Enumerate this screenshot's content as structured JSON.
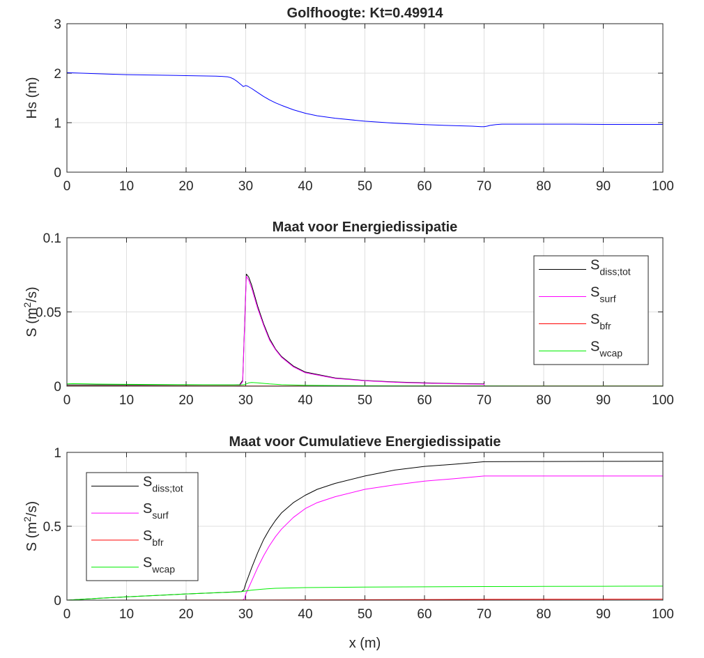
{
  "chart_data": [
    {
      "type": "line",
      "title": "Golfhoogte: Kt=0.49914",
      "xlabel": "",
      "ylabel": "Hs (m)",
      "ylabel_sup": "",
      "ylabel_after": "",
      "xlim": [
        0,
        100
      ],
      "ylim": [
        0,
        3
      ],
      "xticks": [
        "0",
        "10",
        "20",
        "30",
        "40",
        "50",
        "60",
        "70",
        "80",
        "90",
        "100"
      ],
      "yticks": [
        "0",
        "1",
        "2",
        "3"
      ],
      "grid": true,
      "legend": null,
      "series": [
        {
          "color": "#0000ff",
          "x": [
            0,
            5,
            10,
            15,
            20,
            25,
            26,
            27,
            27.5,
            28,
            28.5,
            29,
            29.3,
            29.6,
            30,
            30.3,
            31,
            32,
            33,
            34,
            35,
            36,
            38,
            40,
            42,
            45,
            50,
            55,
            60,
            65,
            68,
            69.5,
            70,
            70.5,
            71,
            72,
            73,
            75,
            80,
            85,
            90,
            95,
            100
          ],
          "y": [
            2.01,
            1.99,
            1.97,
            1.96,
            1.95,
            1.94,
            1.935,
            1.925,
            1.91,
            1.88,
            1.84,
            1.79,
            1.76,
            1.73,
            1.75,
            1.74,
            1.69,
            1.61,
            1.53,
            1.46,
            1.4,
            1.35,
            1.26,
            1.19,
            1.14,
            1.09,
            1.03,
            0.99,
            0.96,
            0.94,
            0.93,
            0.92,
            0.92,
            0.93,
            0.945,
            0.96,
            0.97,
            0.97,
            0.97,
            0.97,
            0.965,
            0.965,
            0.965
          ]
        }
      ]
    },
    {
      "type": "line",
      "title": "Maat voor Energiedissipatie",
      "xlabel": "",
      "ylabel": "S (m",
      "ylabel_sup": "2",
      "ylabel_after": "/s)",
      "xlim": [
        0,
        100
      ],
      "ylim": [
        0,
        0.1
      ],
      "xticks": [
        "0",
        "10",
        "20",
        "30",
        "40",
        "50",
        "60",
        "70",
        "80",
        "90",
        "100"
      ],
      "yticks": [
        "0",
        "0.05",
        "0.1"
      ],
      "grid": true,
      "legend": "top-right",
      "series": [
        {
          "name": "S",
          "sub": "diss;tot",
          "color": "#000000",
          "x": [
            0,
            10,
            20,
            28,
            29,
            29.5,
            29.8,
            30.1,
            30.5,
            31,
            32,
            33,
            34,
            35,
            36,
            38,
            40,
            45,
            50,
            55,
            60,
            65,
            70,
            70.01,
            100
          ],
          "y": [
            0.0008,
            0.0008,
            0.0008,
            0.0008,
            0.001,
            0.004,
            0.04,
            0.0755,
            0.0735,
            0.068,
            0.054,
            0.042,
            0.032,
            0.025,
            0.02,
            0.0135,
            0.0095,
            0.0055,
            0.0038,
            0.0028,
            0.0022,
            0.0018,
            0.0015,
            0,
            0
          ]
        },
        {
          "name": "S",
          "sub": "surf",
          "color": "#ff00ff",
          "x": [
            0,
            28,
            29,
            29.5,
            29.8,
            30.1,
            30.5,
            31,
            32,
            33,
            34,
            35,
            36,
            38,
            40,
            45,
            50,
            55,
            60,
            65,
            70,
            70.01,
            100
          ],
          "y": [
            0,
            0,
            0.0003,
            0.003,
            0.038,
            0.074,
            0.0715,
            0.066,
            0.0525,
            0.041,
            0.031,
            0.0245,
            0.0195,
            0.013,
            0.009,
            0.0052,
            0.0036,
            0.0026,
            0.002,
            0.0016,
            0.0013,
            0,
            0
          ]
        },
        {
          "name": "S",
          "sub": "bfr",
          "color": "#ff0000",
          "x": [
            0,
            30,
            50,
            70,
            100
          ],
          "y": [
            0.0001,
            0.0001,
            0.0001,
            0.0001,
            0.0001
          ]
        },
        {
          "name": "S",
          "sub": "wcap",
          "color": "#00ee00",
          "x": [
            0,
            1,
            5,
            10,
            20,
            29,
            29.8,
            30.5,
            31,
            32,
            34,
            36,
            40,
            45,
            50,
            60,
            70,
            80,
            100
          ],
          "y": [
            0.0015,
            0.0017,
            0.0014,
            0.0012,
            0.001,
            0.0008,
            0.001,
            0.0022,
            0.0025,
            0.0022,
            0.0015,
            0.001,
            0.0006,
            0.0004,
            0.0003,
            0.0002,
            0.0002,
            0.0001,
            0.0001
          ]
        }
      ]
    },
    {
      "type": "line",
      "title": "Maat voor Cumulatieve Energiedissipatie",
      "xlabel": "x (m)",
      "ylabel": "S (m",
      "ylabel_sup": "2",
      "ylabel_after": "/s)",
      "xlim": [
        0,
        100
      ],
      "ylim": [
        0,
        1
      ],
      "xticks": [
        "0",
        "10",
        "20",
        "30",
        "40",
        "50",
        "60",
        "70",
        "80",
        "90",
        "100"
      ],
      "yticks": [
        "0",
        "0.5",
        "1"
      ],
      "grid": true,
      "legend": "top-left",
      "series": [
        {
          "name": "S",
          "sub": "diss;tot",
          "color": "#000000",
          "x": [
            0,
            5,
            10,
            15,
            20,
            25,
            29.3,
            29.7,
            30,
            31,
            32,
            33,
            34,
            35,
            36,
            38,
            40,
            42,
            45,
            50,
            55,
            60,
            65,
            70,
            80,
            90,
            100
          ],
          "y": [
            0,
            0.012,
            0.022,
            0.032,
            0.042,
            0.05,
            0.058,
            0.07,
            0.11,
            0.22,
            0.32,
            0.41,
            0.48,
            0.54,
            0.59,
            0.66,
            0.71,
            0.75,
            0.79,
            0.84,
            0.88,
            0.905,
            0.92,
            0.937,
            0.938,
            0.939,
            0.94
          ]
        },
        {
          "name": "S",
          "sub": "surf",
          "color": "#ff00ff",
          "x": [
            0,
            29.5,
            29.8,
            30,
            31,
            32,
            33,
            34,
            35,
            36,
            38,
            40,
            42,
            45,
            50,
            55,
            60,
            65,
            70,
            80,
            90,
            100
          ],
          "y": [
            0,
            0,
            0.01,
            0.04,
            0.13,
            0.22,
            0.3,
            0.37,
            0.43,
            0.48,
            0.56,
            0.62,
            0.66,
            0.7,
            0.75,
            0.78,
            0.805,
            0.822,
            0.84,
            0.84,
            0.84,
            0.84
          ]
        },
        {
          "name": "S",
          "sub": "bfr",
          "color": "#ff0000",
          "x": [
            0,
            30,
            50,
            70,
            100
          ],
          "y": [
            0,
            0.001,
            0.003,
            0.005,
            0.007
          ]
        },
        {
          "name": "S",
          "sub": "wcap",
          "color": "#00ee00",
          "x": [
            0,
            5,
            10,
            15,
            20,
            25,
            29,
            30,
            31,
            33,
            35,
            40,
            50,
            60,
            70,
            80,
            90,
            100
          ],
          "y": [
            0,
            0.012,
            0.022,
            0.032,
            0.042,
            0.05,
            0.056,
            0.062,
            0.068,
            0.075,
            0.08,
            0.085,
            0.088,
            0.09,
            0.092,
            0.093,
            0.094,
            0.095
          ]
        }
      ]
    }
  ]
}
